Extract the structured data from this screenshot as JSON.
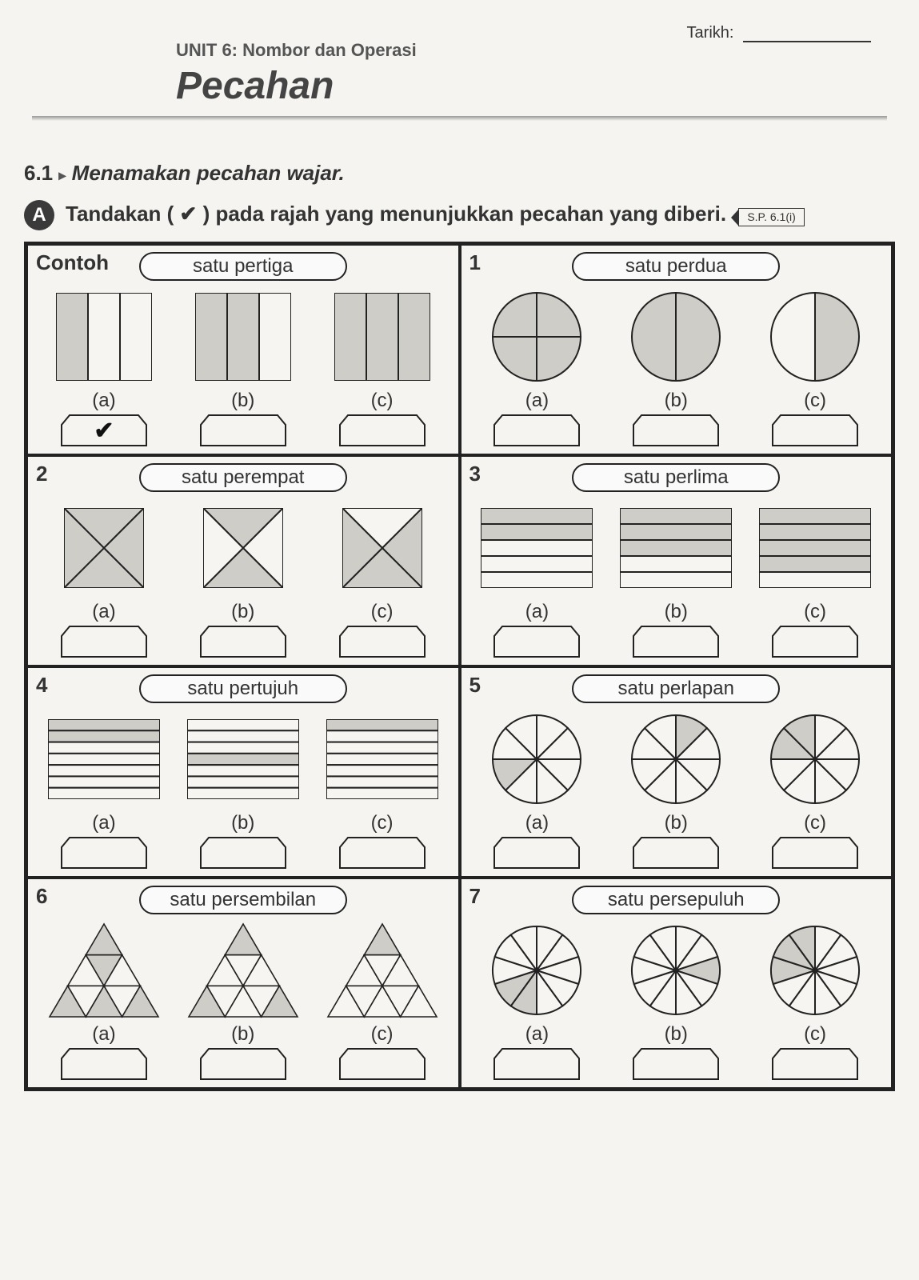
{
  "header": {
    "tarikh_label": "Tarikh:",
    "unit_line": "UNIT 6: Nombor dan Operasi",
    "title": "Pecahan"
  },
  "section": {
    "number": "6.1",
    "arrow": "▸",
    "title": "Menamakan pecahan wajar."
  },
  "instruction": {
    "badge": "A",
    "text_before": "Tandakan ( ",
    "check": "✔",
    "text_after": " ) pada rajah yang menunjukkan pecahan yang diberi.",
    "sp": "S.P. 6.1(i)"
  },
  "colors": {
    "fill_shade": "#cfcdc8",
    "fill_light": "#f6f5f1",
    "stroke": "#222222",
    "background": "#f5f4f0"
  },
  "questions": [
    {
      "num": "Contoh",
      "num_style": "word",
      "label": "satu pertiga",
      "shape": "rect-v",
      "parts": 3,
      "options": [
        {
          "id": "(a)",
          "shaded": [
            0
          ],
          "checked": true
        },
        {
          "id": "(b)",
          "shaded": [
            0,
            1
          ],
          "checked": false
        },
        {
          "id": "(c)",
          "shaded": [
            0,
            1,
            2
          ],
          "checked": false
        }
      ]
    },
    {
      "num": "1",
      "label": "satu perdua",
      "shape": "circle",
      "parts_list": [
        4,
        2,
        2
      ],
      "options": [
        {
          "id": "(a)",
          "parts": 4,
          "shaded": [
            0,
            1,
            2,
            3
          ],
          "checked": false
        },
        {
          "id": "(b)",
          "parts": 2,
          "shaded": [
            0,
            1
          ],
          "checked": false
        },
        {
          "id": "(c)",
          "parts": 2,
          "shaded": [
            0
          ],
          "checked": false
        }
      ]
    },
    {
      "num": "2",
      "label": "satu perempat",
      "shape": "square-x",
      "parts": 4,
      "options": [
        {
          "id": "(a)",
          "shaded": [
            0,
            1,
            2,
            3
          ],
          "checked": false
        },
        {
          "id": "(b)",
          "shaded": [
            0,
            2
          ],
          "checked": false
        },
        {
          "id": "(c)",
          "shaded": [
            1,
            2,
            3
          ],
          "checked": false
        }
      ]
    },
    {
      "num": "3",
      "label": "satu perlima",
      "shape": "rect-h",
      "parts": 5,
      "options": [
        {
          "id": "(a)",
          "shaded": [
            0,
            1
          ],
          "checked": false
        },
        {
          "id": "(b)",
          "shaded": [
            0,
            1,
            2
          ],
          "checked": false
        },
        {
          "id": "(c)",
          "shaded": [
            0,
            1,
            2,
            3
          ],
          "checked": false
        }
      ]
    },
    {
      "num": "4",
      "label": "satu pertujuh",
      "shape": "rect-h",
      "parts": 7,
      "options": [
        {
          "id": "(a)",
          "shaded": [
            0,
            1
          ],
          "checked": false
        },
        {
          "id": "(b)",
          "shaded": [
            3
          ],
          "checked": false
        },
        {
          "id": "(c)",
          "shaded": [
            0
          ],
          "checked": false
        }
      ]
    },
    {
      "num": "5",
      "label": "satu perlapan",
      "shape": "circle",
      "parts": 8,
      "options": [
        {
          "id": "(a)",
          "parts": 8,
          "shaded": [
            5
          ],
          "checked": false
        },
        {
          "id": "(b)",
          "parts": 8,
          "shaded": [
            0
          ],
          "checked": false
        },
        {
          "id": "(c)",
          "parts": 8,
          "shaded": [
            6,
            7
          ],
          "checked": false
        }
      ]
    },
    {
      "num": "6",
      "label": "satu persembilan",
      "shape": "triangle9",
      "parts": 9,
      "options": [
        {
          "id": "(a)",
          "shaded": [
            0,
            2,
            4,
            6,
            8
          ],
          "checked": false
        },
        {
          "id": "(b)",
          "shaded": [
            0,
            4,
            8
          ],
          "checked": false
        },
        {
          "id": "(c)",
          "shaded": [
            0
          ],
          "checked": false
        }
      ]
    },
    {
      "num": "7",
      "label": "satu persepuluh",
      "shape": "circle",
      "parts": 10,
      "options": [
        {
          "id": "(a)",
          "parts": 10,
          "shaded": [
            5,
            6
          ],
          "checked": false
        },
        {
          "id": "(b)",
          "parts": 10,
          "shaded": [
            2
          ],
          "checked": false
        },
        {
          "id": "(c)",
          "parts": 10,
          "shaded": [
            7,
            8,
            9
          ],
          "checked": false
        }
      ]
    }
  ],
  "opt_labels": [
    "(a)",
    "(b)",
    "(c)"
  ],
  "checkmark": "✔"
}
